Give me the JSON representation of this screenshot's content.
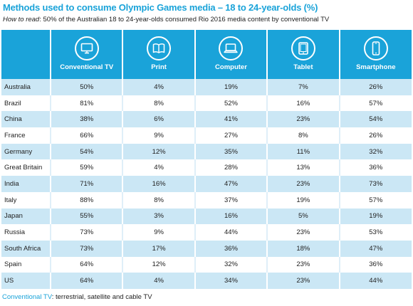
{
  "title": "Methods used to consume Olympic Games media – 18 to 24-year-olds (%)",
  "subtitle": {
    "lead": "How to read",
    "text": ": 50% of the Australian 18 to 24-year-olds consumed Rio 2016 media content by conventional TV"
  },
  "footnote": {
    "term": "Conventional TV",
    "text": ": terrestrial, satellite and cable TV"
  },
  "accent_color": "#1aa3d9",
  "stripe_color": "#cbe7f5",
  "chart_data": {
    "type": "table",
    "columns": [
      {
        "label": "Conventional TV",
        "icon": "tv-icon"
      },
      {
        "label": "Print",
        "icon": "book-icon"
      },
      {
        "label": "Computer",
        "icon": "laptop-icon"
      },
      {
        "label": "Tablet",
        "icon": "tablet-icon"
      },
      {
        "label": "Smartphone",
        "icon": "smartphone-icon"
      }
    ],
    "rows": [
      {
        "country": "Australia",
        "values": [
          "50%",
          "4%",
          "19%",
          "7%",
          "26%"
        ]
      },
      {
        "country": "Brazil",
        "values": [
          "81%",
          "8%",
          "52%",
          "16%",
          "57%"
        ]
      },
      {
        "country": "China",
        "values": [
          "38%",
          "6%",
          "41%",
          "23%",
          "54%"
        ]
      },
      {
        "country": "France",
        "values": [
          "66%",
          "9%",
          "27%",
          "8%",
          "26%"
        ]
      },
      {
        "country": "Germany",
        "values": [
          "54%",
          "12%",
          "35%",
          "11%",
          "32%"
        ]
      },
      {
        "country": "Great Britain",
        "values": [
          "59%",
          "4%",
          "28%",
          "13%",
          "36%"
        ]
      },
      {
        "country": "India",
        "values": [
          "71%",
          "16%",
          "47%",
          "23%",
          "73%"
        ]
      },
      {
        "country": "Italy",
        "values": [
          "88%",
          "8%",
          "37%",
          "19%",
          "57%"
        ]
      },
      {
        "country": "Japan",
        "values": [
          "55%",
          "3%",
          "16%",
          "5%",
          "19%"
        ]
      },
      {
        "country": "Russia",
        "values": [
          "73%",
          "9%",
          "44%",
          "23%",
          "53%"
        ]
      },
      {
        "country": "South Africa",
        "values": [
          "73%",
          "17%",
          "36%",
          "18%",
          "47%"
        ]
      },
      {
        "country": "Spain",
        "values": [
          "64%",
          "12%",
          "32%",
          "23%",
          "36%"
        ]
      },
      {
        "country": "US",
        "values": [
          "64%",
          "4%",
          "34%",
          "23%",
          "44%"
        ]
      }
    ]
  }
}
